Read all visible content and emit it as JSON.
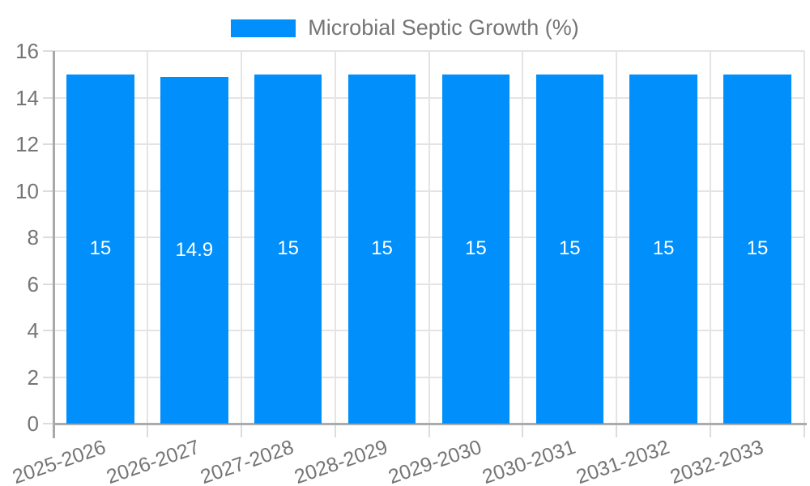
{
  "legend": {
    "label": "Microbial Septic Growth (%)"
  },
  "chart_data": {
    "type": "bar",
    "title": "Microbial Septic Growth (%)",
    "categories": [
      "2025-2026",
      "2026-2027",
      "2027-2028",
      "2028-2029",
      "2029-2030",
      "2030-2031",
      "2031-2032",
      "2032-2033"
    ],
    "values": [
      15,
      14.9,
      15,
      15,
      15,
      15,
      15,
      15
    ],
    "data_labels": [
      "15",
      "14.9",
      "15",
      "15",
      "15",
      "15",
      "15",
      "15"
    ],
    "xlabel": "",
    "ylabel": "",
    "ylim": [
      0,
      16
    ],
    "yticks": [
      0,
      2,
      4,
      6,
      8,
      10,
      12,
      14,
      16
    ],
    "legend_position": "top-center",
    "grid": "on",
    "x_label_rotation_deg": -19,
    "colors": {
      "bar": "#008ffb",
      "value_label": "#ffffff",
      "axis_text": "#757575",
      "gridline": "#e4e4e4",
      "axis_line": "#ababab",
      "background": "#ffffff"
    }
  }
}
